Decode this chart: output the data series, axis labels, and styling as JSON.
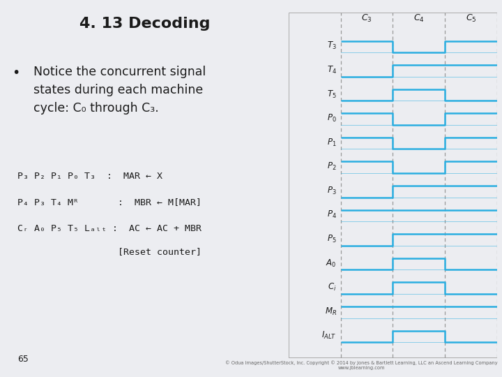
{
  "title": "4. 13 Decoding",
  "bg_color": "#ecedf1",
  "diagram_bg": "#f8f8fa",
  "signal_color": "#2aaee0",
  "dashed_color": "#999999",
  "text_color": "#1a1a1a",
  "signals_c3_c4_c5": {
    "T3": [
      1,
      0,
      1
    ],
    "T4": [
      0,
      1,
      1
    ],
    "T5": [
      0,
      1,
      0
    ],
    "P0": [
      1,
      0,
      1
    ],
    "P1": [
      1,
      0,
      1
    ],
    "P2": [
      1,
      0,
      1
    ],
    "P3": [
      0,
      1,
      1
    ],
    "P4": [
      1,
      1,
      1
    ],
    "P5": [
      0,
      1,
      1
    ],
    "A0": [
      0,
      1,
      0
    ],
    "Cr": [
      0,
      1,
      0
    ],
    "MR": [
      1,
      1,
      1
    ],
    "LALT": [
      0,
      1,
      0
    ]
  },
  "page_number": "65",
  "copyright_line1": "© Odua Images/ShutterStock, Inc. Copyright © 2014 by Jones & Bartlett Learning, LLC an Ascend Learning Company",
  "copyright_line2": "www.jblearning.com"
}
